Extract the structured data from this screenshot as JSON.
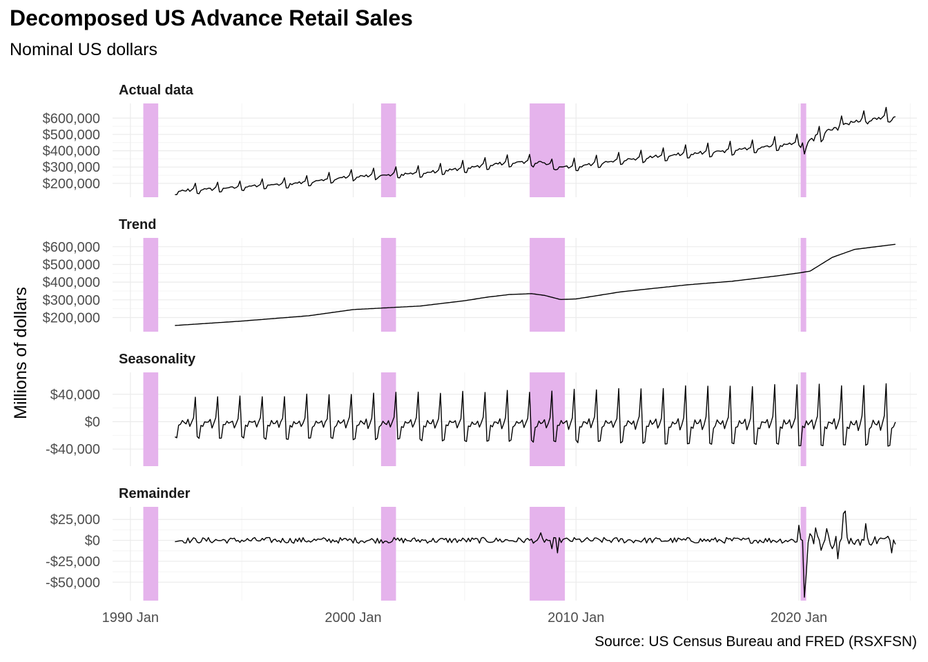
{
  "title": "Decomposed US Advance Retail Sales",
  "subtitle": "Nominal US dollars",
  "caption": "Source: US Census Bureau and FRED (RSXFSN)",
  "colors": {
    "recession_band": "#e5b3ec",
    "line": "#000000",
    "grid_major": "#ebebeb",
    "grid_minor": "#f4f4f4"
  },
  "chart_data": {
    "type": "line",
    "ylabel": "Millions of dollars",
    "xlabel": "",
    "x_ticks": [
      {
        "label": "1990 Jan",
        "year": 1990.0
      },
      {
        "label": "2000 Jan",
        "year": 2000.0
      },
      {
        "label": "2010 Jan",
        "year": 2010.0
      },
      {
        "label": "2020 Jan",
        "year": 2020.0
      }
    ],
    "xlim": [
      1989.2,
      2025.3
    ],
    "recessions": [
      {
        "start": 1990.58,
        "end": 1991.25
      },
      {
        "start": 2001.25,
        "end": 2001.92
      },
      {
        "start": 2007.92,
        "end": 2009.5
      },
      {
        "start": 2020.08,
        "end": 2020.33
      }
    ],
    "data_start": 1992.0,
    "data_end": 2024.4,
    "panels": [
      {
        "name": "Actual data",
        "component": "actual",
        "ylim": [
          115000,
          690000
        ],
        "ticks": [
          {
            "value": 200000,
            "label": "$200,000"
          },
          {
            "value": 300000,
            "label": "$300,000"
          },
          {
            "value": 400000,
            "label": "$400,000"
          },
          {
            "value": 500000,
            "label": "$500,000"
          },
          {
            "value": 600000,
            "label": "$600,000"
          }
        ]
      },
      {
        "name": "Trend",
        "component": "trend",
        "ylim": [
          120000,
          650000
        ],
        "ticks": [
          {
            "value": 200000,
            "label": "$200,000"
          },
          {
            "value": 300000,
            "label": "$300,000"
          },
          {
            "value": 400000,
            "label": "$400,000"
          },
          {
            "value": 500000,
            "label": "$500,000"
          },
          {
            "value": 600000,
            "label": "$600,000"
          }
        ]
      },
      {
        "name": "Seasonality",
        "component": "seasonal",
        "ylim": [
          -65000,
          72000
        ],
        "ticks": [
          {
            "value": -40000,
            "label": "-$40,000"
          },
          {
            "value": 0,
            "label": "$0"
          },
          {
            "value": 40000,
            "label": "$40,000"
          }
        ]
      },
      {
        "name": "Remainder",
        "component": "remainder",
        "ylim": [
          -72000,
          40000
        ],
        "ticks": [
          {
            "value": -50000,
            "label": "-$50,000"
          },
          {
            "value": -25000,
            "label": "-$25,000"
          },
          {
            "value": 0,
            "label": "$0"
          },
          {
            "value": 25000,
            "label": "$25,000"
          }
        ]
      }
    ],
    "trend_knots": [
      [
        1992,
        155000
      ],
      [
        1995,
        180000
      ],
      [
        1998,
        210000
      ],
      [
        2000,
        245000
      ],
      [
        2003,
        265000
      ],
      [
        2005,
        295000
      ],
      [
        2006,
        315000
      ],
      [
        2007,
        330000
      ],
      [
        2008,
        335000
      ],
      [
        2008.6,
        325000
      ],
      [
        2009.3,
        302000
      ],
      [
        2010,
        305000
      ],
      [
        2012,
        345000
      ],
      [
        2015,
        385000
      ],
      [
        2017,
        405000
      ],
      [
        2019,
        435000
      ],
      [
        2020,
        452000
      ],
      [
        2020.5,
        462000
      ],
      [
        2021.5,
        540000
      ],
      [
        2022.5,
        585000
      ],
      [
        2024.4,
        615000
      ]
    ],
    "seasonal_pattern_base": [
      -24000,
      -24000,
      -6000,
      -6000,
      1000,
      -2000,
      -2000,
      2000,
      -8000,
      -2000,
      5000,
      38000
    ],
    "seasonal_amplitude": [
      [
        1992,
        0.95
      ],
      [
        2000,
        1.05
      ],
      [
        2010,
        1.2
      ],
      [
        2015,
        1.35
      ],
      [
        2024.4,
        1.45
      ]
    ],
    "remainder_events": [
      {
        "year": 2008.4,
        "value": 9000
      },
      {
        "year": 2008.95,
        "value": -10000
      },
      {
        "year": 2009.2,
        "value": -15000
      },
      {
        "year": 2020.0,
        "value": 18000
      },
      {
        "year": 2020.25,
        "value": -68000
      },
      {
        "year": 2020.33,
        "value": -40000
      },
      {
        "year": 2020.5,
        "value": 8000
      },
      {
        "year": 2020.75,
        "value": 15000
      },
      {
        "year": 2021.0,
        "value": -12000
      },
      {
        "year": 2021.25,
        "value": 14000
      },
      {
        "year": 2021.5,
        "value": -10000
      },
      {
        "year": 2021.75,
        "value": -22000
      },
      {
        "year": 2022.0,
        "value": 32000
      },
      {
        "year": 2022.1,
        "value": 35000
      },
      {
        "year": 2022.4,
        "value": -3000
      },
      {
        "year": 2023.0,
        "value": 20000
      },
      {
        "year": 2024.2,
        "value": -15000
      }
    ]
  }
}
